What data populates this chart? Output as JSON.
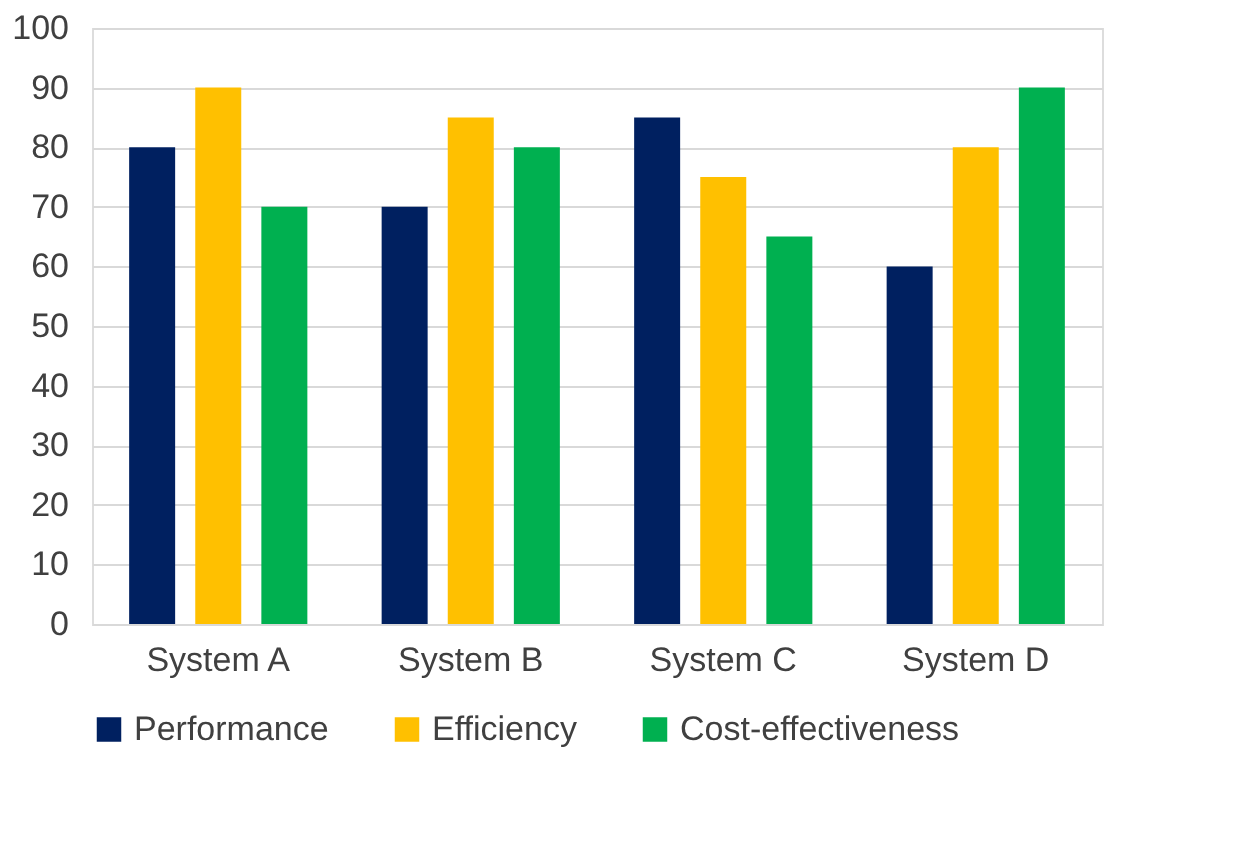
{
  "chart_data": {
    "type": "bar",
    "categories": [
      "System A",
      "System B",
      "System C",
      "System D"
    ],
    "series": [
      {
        "name": "Performance",
        "color": "#002060",
        "values": [
          80,
          70,
          85,
          60
        ]
      },
      {
        "name": "Efficiency",
        "color": "#ffc000",
        "values": [
          90,
          85,
          75,
          80
        ]
      },
      {
        "name": "Cost-effectiveness",
        "color": "#00b050",
        "values": [
          70,
          80,
          65,
          90
        ]
      }
    ],
    "ylim": [
      0,
      100
    ],
    "yticks": [
      0,
      10,
      20,
      30,
      40,
      50,
      60,
      70,
      80,
      90,
      100
    ],
    "grid": "y",
    "legend": "bottom"
  }
}
